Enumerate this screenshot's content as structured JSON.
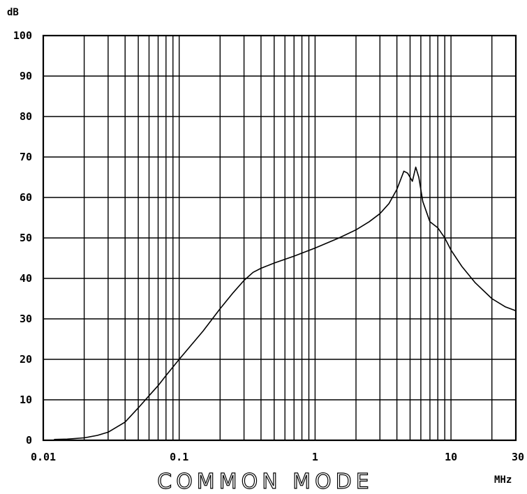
{
  "chart_data": {
    "type": "line",
    "title": "COMMON MODE",
    "xlabel": "MHz",
    "ylabel": "dB",
    "x_scale": "log",
    "xlim": [
      0.01,
      30
    ],
    "ylim": [
      0,
      100
    ],
    "grid": true,
    "x_ticks": [
      0.01,
      0.1,
      1,
      10,
      30
    ],
    "x_tick_labels": [
      "0.01",
      "0.1",
      "1",
      "10",
      "30"
    ],
    "x_minor_gridlines": [
      0.02,
      0.03,
      0.04,
      0.05,
      0.06,
      0.07,
      0.08,
      0.09,
      0.2,
      0.3,
      0.4,
      0.5,
      0.6,
      0.7,
      0.8,
      0.9,
      2,
      3,
      4,
      5,
      6,
      7,
      8,
      9,
      20
    ],
    "y_ticks": [
      0,
      10,
      20,
      30,
      40,
      50,
      60,
      70,
      80,
      90,
      100
    ],
    "y_tick_labels": [
      "0",
      "10",
      "20",
      "30",
      "40",
      "50",
      "60",
      "70",
      "80",
      "90",
      "100"
    ],
    "series": [
      {
        "x": [
          0.012,
          0.015,
          0.02,
          0.025,
          0.03,
          0.04,
          0.05,
          0.06,
          0.07,
          0.08,
          0.1,
          0.15,
          0.2,
          0.25,
          0.3,
          0.35,
          0.4,
          0.5,
          0.7,
          1,
          1.5,
          2,
          2.5,
          3,
          3.5,
          4,
          4.5,
          4.8,
          5.2,
          5.5,
          5.8,
          6.2,
          7,
          8,
          9,
          10,
          12,
          15,
          20,
          25,
          30
        ],
        "y": [
          0.2,
          0.3,
          0.6,
          1.2,
          2,
          4.5,
          8,
          11,
          13.5,
          16,
          20,
          27,
          32.5,
          36.5,
          39.5,
          41.5,
          42.5,
          43.8,
          45.5,
          47.5,
          50,
          52,
          54,
          56,
          58.5,
          62,
          66.5,
          66,
          64,
          67.5,
          65,
          59,
          54,
          52.5,
          50,
          47,
          43,
          39,
          35,
          33,
          32
        ]
      }
    ]
  }
}
